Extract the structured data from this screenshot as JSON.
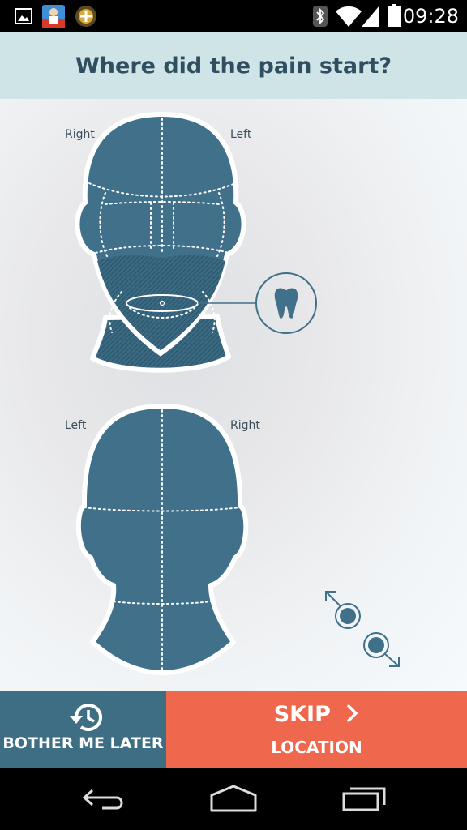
{
  "status_bar": {
    "time": "09:28",
    "icons": [
      "gallery-icon",
      "app-icon",
      "location-badge-icon",
      "bluetooth-icon",
      "wifi-icon",
      "signal-icon",
      "battery-icon"
    ]
  },
  "header": {
    "title": "Where did the pain start?"
  },
  "front_head": {
    "right_label": "Right",
    "left_label": "Left",
    "tooth_icon": "tooth-icon"
  },
  "back_head": {
    "left_label": "Left",
    "right_label": "Right"
  },
  "resize_control": {
    "icon": "resize-arrows-icon"
  },
  "footer": {
    "later_label": "BOTHER ME LATER",
    "skip_label": "SKIP",
    "skip_sub_label": "LOCATION"
  },
  "nav_bar": {
    "icons": [
      "back-icon",
      "home-icon",
      "recents-icon"
    ]
  },
  "colors": {
    "header_bg": "#cfe4e6",
    "head_fill": "#40708a",
    "later_bg": "#3d6e84",
    "skip_bg": "#ef684d"
  }
}
